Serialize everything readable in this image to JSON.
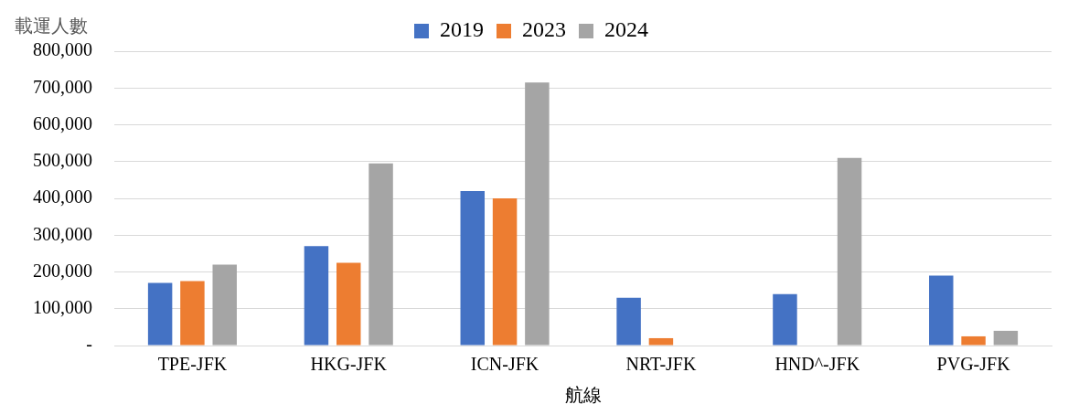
{
  "chart_data": {
    "type": "bar",
    "ylabel": "載運人數",
    "xlabel": "航線",
    "categories": [
      "TPE-JFK",
      "HKG-JFK",
      "ICN-JFK",
      "NRT-JFK",
      "HND^-JFK",
      "PVG-JFK"
    ],
    "series": [
      {
        "name": "2019",
        "color": "#4472c4",
        "values": [
          170000,
          270000,
          420000,
          130000,
          140000,
          190000
        ]
      },
      {
        "name": "2023",
        "color": "#ed7d31",
        "values": [
          175000,
          225000,
          400000,
          20000,
          null,
          25000
        ]
      },
      {
        "name": "2024",
        "color": "#a5a5a5",
        "values": [
          220000,
          495000,
          715000,
          null,
          510000,
          40000
        ]
      }
    ],
    "ylim": [
      0,
      800000
    ],
    "yticks": [
      {
        "value": 0,
        "label": "-"
      },
      {
        "value": 100000,
        "label": "100,000"
      },
      {
        "value": 200000,
        "label": "200,000"
      },
      {
        "value": 300000,
        "label": "300,000"
      },
      {
        "value": 400000,
        "label": "400,000"
      },
      {
        "value": 500000,
        "label": "500,000"
      },
      {
        "value": 600000,
        "label": "600,000"
      },
      {
        "value": 700000,
        "label": "700,000"
      },
      {
        "value": 800000,
        "label": "800,000"
      }
    ],
    "grid": "y",
    "legend": "top"
  }
}
